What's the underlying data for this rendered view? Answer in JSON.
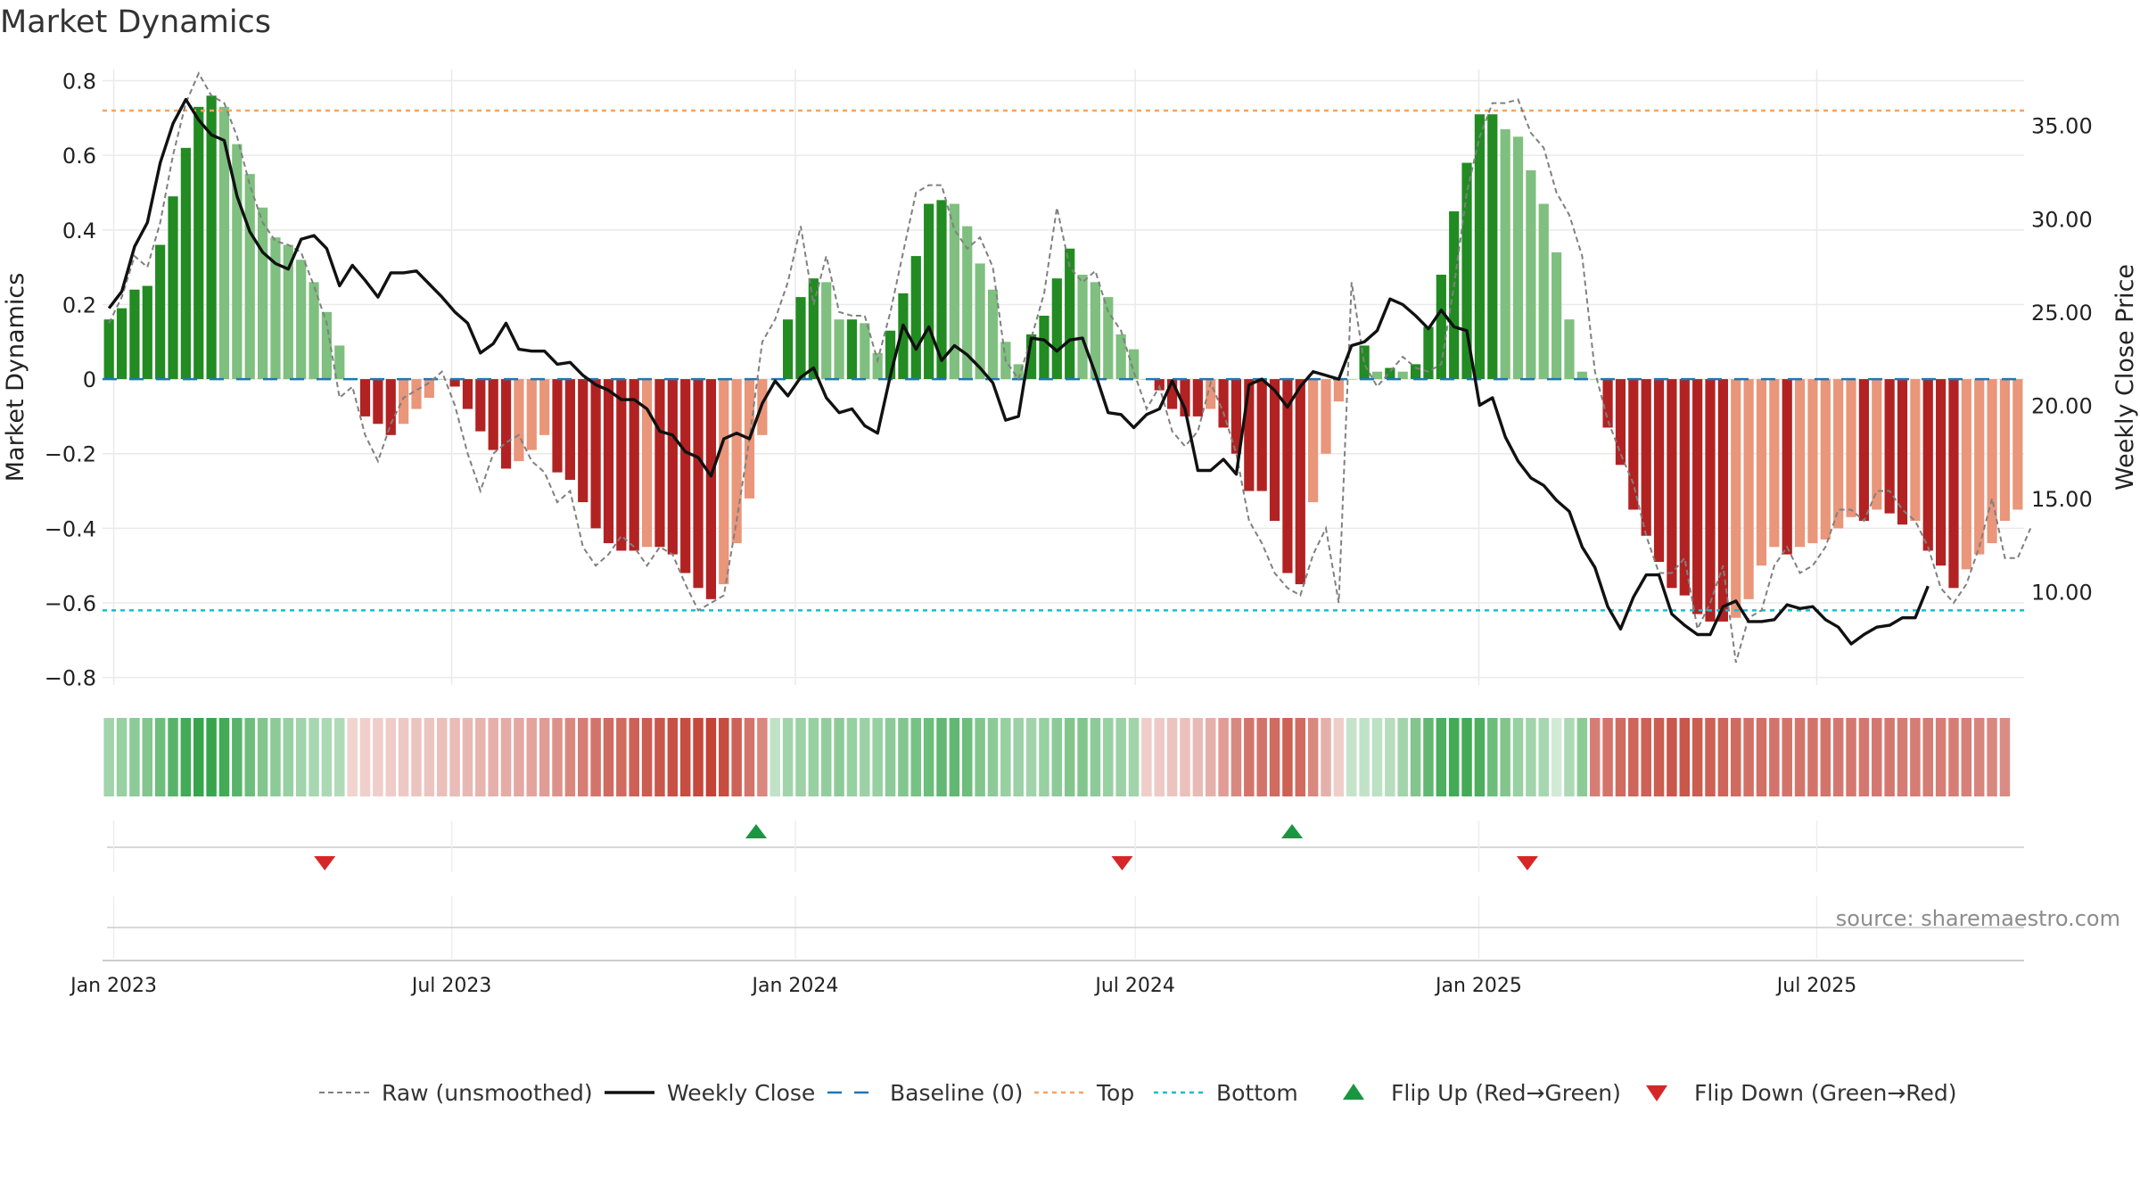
{
  "title": "Market Dynamics",
  "source": "source: sharemaestro.com",
  "colors": {
    "green_strong": "#228b22",
    "green_light": "#7fbf7f",
    "red_strong": "#b22222",
    "red_light": "#e9967a",
    "raw": "#808080",
    "close": "#111111",
    "baseline": "#1f77b4",
    "top": "#f4a460",
    "bottom": "#17becf",
    "flip_up": "#1a9641",
    "flip_down": "#d62728"
  },
  "chart_data": {
    "type": "bar",
    "title": "Market Dynamics",
    "ylabel": "Market Dynamics",
    "y2label": "Weekly Close Price",
    "ylim": [
      -0.82,
      0.83
    ],
    "y2lim": [
      5.0,
      38.0
    ],
    "yticks": [
      0.8,
      0.6,
      0.4,
      0.2,
      0,
      -0.2,
      -0.4,
      -0.6,
      -0.8
    ],
    "ytick_labels": [
      "0.8",
      "0.6",
      "0.4",
      "0.2",
      "0",
      "−0.2",
      "−0.4",
      "−0.6",
      "−0.8"
    ],
    "y2ticks": [
      35.0,
      30.0,
      25.0,
      20.0,
      15.0,
      10.0
    ],
    "y2tick_labels": [
      "35.00",
      "30.00",
      "25.00",
      "20.00",
      "15.00",
      "10.00"
    ],
    "x_start": "2022-12-26",
    "x_end": "2025-10-20",
    "xticks": [
      "2023-01-01",
      "2023-07-01",
      "2024-01-01",
      "2024-07-01",
      "2025-01-01",
      "2025-07-01"
    ],
    "xtick_labels": [
      "Jan 2023",
      "Jul 2023",
      "Jan 2024",
      "Jul 2024",
      "Jan 2025",
      "Jul 2025"
    ],
    "top_level": 0.72,
    "bottom_level": -0.62,
    "baseline": 0,
    "grid": true,
    "legend_position": "bottom",
    "legend": [
      {
        "key": "raw",
        "label": "Raw (unsmoothed)"
      },
      {
        "key": "close",
        "label": "Weekly Close"
      },
      {
        "key": "baseline",
        "label": "Baseline (0)"
      },
      {
        "key": "top",
        "label": "Top"
      },
      {
        "key": "bottom",
        "label": "Bottom"
      },
      {
        "key": "flip_up",
        "label": "Flip Up (Red→Green)"
      },
      {
        "key": "flip_down",
        "label": "Flip Down (Green→Red)"
      }
    ],
    "momentum": [
      0.16,
      0.19,
      0.24,
      0.25,
      0.36,
      0.49,
      0.62,
      0.73,
      0.76,
      0.73,
      0.63,
      0.55,
      0.46,
      0.38,
      0.36,
      0.32,
      0.26,
      0.18,
      0.09,
      0,
      -0.1,
      -0.12,
      -0.15,
      -0.12,
      -0.08,
      -0.05,
      0,
      -0.02,
      -0.08,
      -0.14,
      -0.19,
      -0.24,
      -0.22,
      -0.19,
      -0.15,
      -0.25,
      -0.27,
      -0.33,
      -0.4,
      -0.44,
      -0.46,
      -0.46,
      -0.45,
      -0.45,
      -0.47,
      -0.52,
      -0.56,
      -0.59,
      -0.55,
      -0.44,
      -0.32,
      -0.15,
      0,
      0.16,
      0.22,
      0.27,
      0.26,
      0.16,
      0.16,
      0.15,
      0.07,
      0.13,
      0.23,
      0.33,
      0.47,
      0.48,
      0.47,
      0.41,
      0.31,
      0.24,
      0.1,
      0.04,
      0.12,
      0.17,
      0.27,
      0.35,
      0.28,
      0.26,
      0.22,
      0.12,
      0.08,
      0,
      -0.03,
      -0.08,
      -0.1,
      -0.1,
      -0.08,
      -0.13,
      -0.2,
      -0.3,
      -0.3,
      -0.38,
      -0.52,
      -0.55,
      -0.33,
      -0.2,
      -0.06,
      0,
      0.09,
      0.02,
      0.03,
      0.02,
      0.04,
      0.14,
      0.28,
      0.45,
      0.58,
      0.71,
      0.71,
      0.67,
      0.65,
      0.56,
      0.47,
      0.34,
      0.16,
      0.02,
      0,
      -0.13,
      -0.23,
      -0.35,
      -0.42,
      -0.49,
      -0.56,
      -0.58,
      -0.63,
      -0.65,
      -0.65,
      -0.64,
      -0.59,
      -0.5,
      -0.45,
      -0.47,
      -0.45,
      -0.44,
      -0.43,
      -0.4,
      -0.37,
      -0.38,
      -0.35,
      -0.36,
      -0.39,
      -0.38,
      -0.46,
      -0.5,
      -0.56,
      -0.51,
      -0.47,
      -0.44,
      -0.38,
      -0.35
    ],
    "raw": [
      0.15,
      0.22,
      0.33,
      0.3,
      0.42,
      0.6,
      0.74,
      0.82,
      0.76,
      0.74,
      0.65,
      0.52,
      0.42,
      0.37,
      0.36,
      0.34,
      0.25,
      0.15,
      -0.05,
      -0.02,
      -0.15,
      -0.22,
      -0.12,
      -0.05,
      -0.03,
      -0.01,
      0.02,
      -0.07,
      -0.2,
      -0.3,
      -0.2,
      -0.17,
      -0.15,
      -0.22,
      -0.25,
      -0.33,
      -0.3,
      -0.45,
      -0.5,
      -0.47,
      -0.42,
      -0.45,
      -0.5,
      -0.45,
      -0.47,
      -0.55,
      -0.62,
      -0.6,
      -0.58,
      -0.38,
      -0.16,
      0.1,
      0.16,
      0.26,
      0.41,
      0.2,
      0.33,
      0.18,
      0.17,
      0.17,
      0.05,
      0.18,
      0.34,
      0.5,
      0.52,
      0.52,
      0.4,
      0.35,
      0.38,
      0.3,
      0.05,
      0,
      0.11,
      0.23,
      0.46,
      0.3,
      0.26,
      0.29,
      0.18,
      0.13,
      0.02,
      -0.08,
      -0.02,
      -0.14,
      -0.18,
      -0.14,
      -0.01,
      -0.09,
      -0.2,
      -0.38,
      -0.44,
      -0.52,
      -0.56,
      -0.58,
      -0.47,
      -0.4,
      -0.6,
      0.26,
      0.04,
      -0.02,
      0.02,
      0.06,
      0.03,
      0.02,
      0.04,
      0.25,
      0.5,
      0.65,
      0.74,
      0.74,
      0.75,
      0.66,
      0.62,
      0.5,
      0.44,
      0.33,
      0.02,
      -0.11,
      -0.2,
      -0.28,
      -0.42,
      -0.52,
      -0.52,
      -0.48,
      -0.67,
      -0.6,
      -0.5,
      -0.76,
      -0.64,
      -0.62,
      -0.5,
      -0.45,
      -0.52,
      -0.5,
      -0.45,
      -0.35,
      -0.35,
      -0.38,
      -0.3,
      -0.3,
      -0.35,
      -0.38,
      -0.45,
      -0.56,
      -0.6,
      -0.55,
      -0.45,
      -0.32,
      -0.48,
      -0.48,
      -0.4
    ],
    "close": [
      25.2,
      26.1,
      28.5,
      29.8,
      33.0,
      35.1,
      36.4,
      35.3,
      34.5,
      34.2,
      31.2,
      29.3,
      28.2,
      27.6,
      27.3,
      28.9,
      29.1,
      28.4,
      26.4,
      27.5,
      26.7,
      25.8,
      27.1,
      27.1,
      27.2,
      26.5,
      25.8,
      25.0,
      24.4,
      22.8,
      23.3,
      24.4,
      23.0,
      22.9,
      22.9,
      22.2,
      22.3,
      21.6,
      21.1,
      20.8,
      20.3,
      20.3,
      19.8,
      18.6,
      18.4,
      17.5,
      17.2,
      16.2,
      18.2,
      18.5,
      18.2,
      20.1,
      21.3,
      20.5,
      21.5,
      22.0,
      20.4,
      19.6,
      19.8,
      18.9,
      18.5,
      21.6,
      24.3,
      23.0,
      24.2,
      22.4,
      23.2,
      22.7,
      22.0,
      21.2,
      19.2,
      19.4,
      23.6,
      23.5,
      22.9,
      23.5,
      23.6,
      21.7,
      19.6,
      19.5,
      18.8,
      19.5,
      19.8,
      21.3,
      19.8,
      16.5,
      16.5,
      17.1,
      16.3,
      21.1,
      21.4,
      20.8,
      19.9,
      21.0,
      21.8,
      21.6,
      21.4,
      23.2,
      23.4,
      24.0,
      25.7,
      25.4,
      24.8,
      24.1,
      25.1,
      24.2,
      24.0,
      20.0,
      20.4,
      18.3,
      17.0,
      16.1,
      15.7,
      14.9,
      14.3,
      12.4,
      11.3,
      9.2,
      8.0,
      9.7,
      10.9,
      10.9,
      8.8,
      8.2,
      7.7,
      7.7,
      9.2,
      9.5,
      8.4,
      8.4,
      8.5,
      9.3,
      9.1,
      9.2,
      8.5,
      8.1,
      7.2,
      7.7,
      8.1,
      8.2,
      8.6,
      8.6,
      10.3
    ],
    "band_intensity": [
      0.45,
      0.5,
      0.55,
      0.6,
      0.7,
      0.8,
      0.9,
      0.95,
      0.95,
      0.9,
      0.8,
      0.7,
      0.6,
      0.55,
      0.5,
      0.45,
      0.42,
      0.4,
      0.38,
      0.22,
      0.24,
      0.25,
      0.26,
      0.28,
      0.3,
      0.3,
      0.32,
      0.34,
      0.36,
      0.38,
      0.4,
      0.42,
      0.44,
      0.46,
      0.5,
      0.55,
      0.6,
      0.65,
      0.7,
      0.75,
      0.75,
      0.8,
      0.82,
      0.85,
      0.88,
      0.9,
      0.92,
      0.95,
      0.9,
      0.8,
      0.7,
      0.6,
      0.3,
      0.45,
      0.48,
      0.5,
      0.52,
      0.55,
      0.5,
      0.48,
      0.5,
      0.55,
      0.6,
      0.65,
      0.7,
      0.75,
      0.75,
      0.7,
      0.6,
      0.55,
      0.5,
      0.48,
      0.45,
      0.5,
      0.55,
      0.6,
      0.6,
      0.55,
      0.5,
      0.48,
      0.45,
      0.25,
      0.27,
      0.3,
      0.32,
      0.35,
      0.4,
      0.5,
      0.6,
      0.7,
      0.7,
      0.75,
      0.8,
      0.75,
      0.6,
      0.4,
      0.25,
      0.28,
      0.3,
      0.32,
      0.35,
      0.45,
      0.6,
      0.75,
      0.85,
      0.9,
      0.9,
      0.85,
      0.7,
      0.6,
      0.5,
      0.45,
      0.42,
      0.22,
      0.4,
      0.55,
      0.65,
      0.7,
      0.75,
      0.78,
      0.8,
      0.82,
      0.85,
      0.85,
      0.82,
      0.8,
      0.78,
      0.75,
      0.72,
      0.72,
      0.7,
      0.7,
      0.7,
      0.7,
      0.7,
      0.68,
      0.68,
      0.68,
      0.68,
      0.68,
      0.66,
      0.66,
      0.66,
      0.65,
      0.65,
      0.64,
      0.62,
      0.6,
      0.58
    ],
    "flips": [
      {
        "date": "2023-04-24",
        "type": "down"
      },
      {
        "date": "2023-12-11",
        "type": "up"
      },
      {
        "date": "2024-06-24",
        "type": "down"
      },
      {
        "date": "2024-09-23",
        "type": "up"
      },
      {
        "date": "2025-01-27",
        "type": "down"
      }
    ]
  }
}
